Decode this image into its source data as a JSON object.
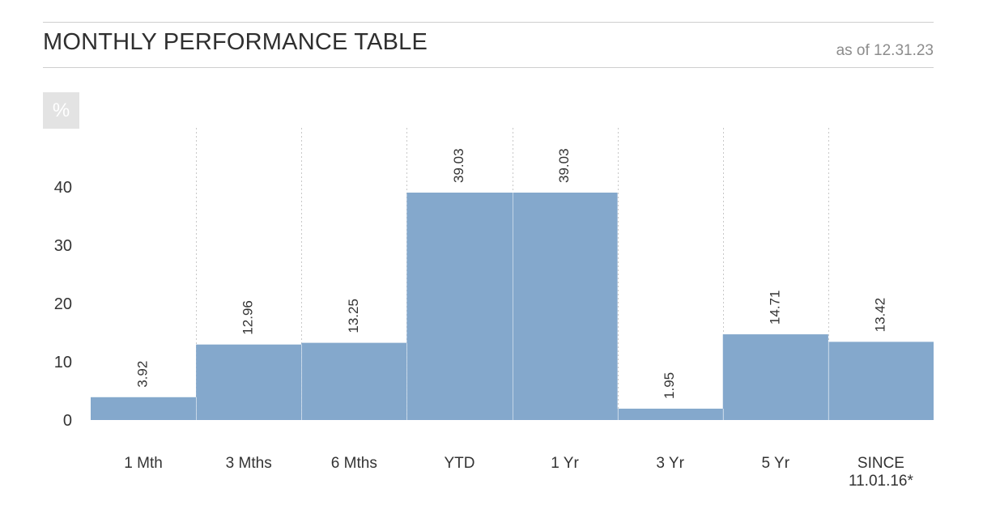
{
  "header": {
    "title": "MONTHLY PERFORMANCE TABLE",
    "as_of": "as of 12.31.23",
    "unit": "%"
  },
  "colors": {
    "bar": "#84a8cc",
    "rule": "#cfcfcf",
    "gridline": "#c8c8c8"
  },
  "chart_data": {
    "type": "bar",
    "title": "MONTHLY PERFORMANCE TABLE",
    "ylabel": "%",
    "xlabel": "",
    "categories": [
      "1 Mth",
      "3 Mths",
      "6 Mths",
      "YTD",
      "1 Yr",
      "3 Yr",
      "5 Yr",
      "SINCE 11.01.16*"
    ],
    "category_lines": [
      [
        "1 Mth"
      ],
      [
        "3 Mths"
      ],
      [
        "6 Mths"
      ],
      [
        "YTD"
      ],
      [
        "1 Yr"
      ],
      [
        "3 Yr"
      ],
      [
        "5 Yr"
      ],
      [
        "SINCE",
        "11.01.16*"
      ]
    ],
    "values": [
      3.92,
      12.96,
      13.25,
      39.03,
      39.03,
      1.95,
      14.71,
      13.42
    ],
    "value_labels": [
      "3.92",
      "12.96",
      "13.25",
      "39.03",
      "39.03",
      "1.95",
      "14.71",
      "13.42"
    ],
    "yticks": [
      0,
      10,
      20,
      30,
      40
    ],
    "ylim": [
      0,
      50
    ],
    "grid": "vertical dotted separators between categories",
    "legend": "none"
  }
}
